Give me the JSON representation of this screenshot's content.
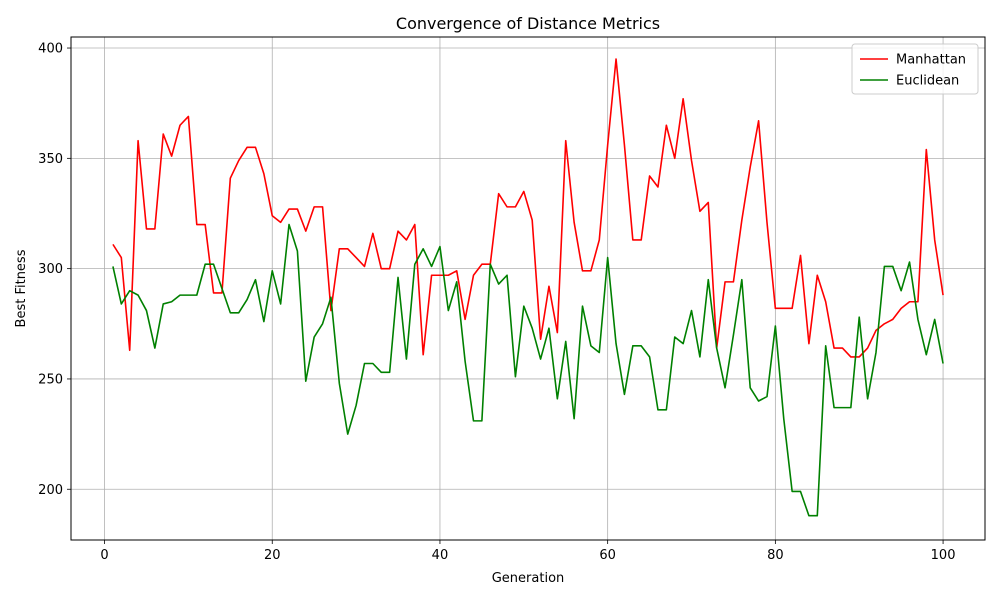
{
  "chart_data": {
    "type": "line",
    "title": "Convergence of Distance Metrics",
    "xlabel": "Generation",
    "ylabel": "Best Fitness",
    "xlim": [
      -4,
      105
    ],
    "ylim": [
      177,
      405
    ],
    "xticks": [
      0,
      20,
      40,
      60,
      80,
      100
    ],
    "yticks": [
      200,
      250,
      300,
      350,
      400
    ],
    "grid": true,
    "legend_position": "top-right",
    "x": [
      1,
      2,
      3,
      4,
      5,
      6,
      7,
      8,
      9,
      10,
      11,
      12,
      13,
      14,
      15,
      16,
      17,
      18,
      19,
      20,
      21,
      22,
      23,
      24,
      25,
      26,
      27,
      28,
      29,
      30,
      31,
      32,
      33,
      34,
      35,
      36,
      37,
      38,
      39,
      40,
      41,
      42,
      43,
      44,
      45,
      46,
      47,
      48,
      49,
      50,
      51,
      52,
      53,
      54,
      55,
      56,
      57,
      58,
      59,
      60,
      61,
      62,
      63,
      64,
      65,
      66,
      67,
      68,
      69,
      70,
      71,
      72,
      73,
      74,
      75,
      76,
      77,
      78,
      79,
      80,
      81,
      82,
      83,
      84,
      85,
      86,
      87,
      88,
      89,
      90,
      91,
      92,
      93,
      94,
      95,
      96,
      97,
      98,
      99,
      100
    ],
    "series": [
      {
        "name": "Manhattan",
        "color": "#ff0000",
        "values": [
          311,
          305,
          263,
          358,
          318,
          318,
          361,
          351,
          365,
          369,
          320,
          320,
          289,
          289,
          341,
          349,
          355,
          355,
          343,
          324,
          321,
          327,
          327,
          317,
          328,
          328,
          281,
          309,
          309,
          305,
          301,
          316,
          300,
          300,
          317,
          313,
          320,
          261,
          297,
          297,
          297,
          299,
          277,
          297,
          302,
          302,
          334,
          328,
          328,
          335,
          322,
          268,
          292,
          271,
          358,
          321,
          299,
          299,
          313,
          356,
          395,
          356,
          313,
          313,
          342,
          337,
          365,
          350,
          377,
          349,
          326,
          330,
          264,
          294,
          294,
          322,
          346,
          367,
          321,
          282,
          282,
          282,
          306,
          266,
          297,
          285,
          264,
          264,
          260,
          260,
          264,
          272,
          275,
          277,
          282,
          285,
          285,
          354,
          313,
          288
        ]
      },
      {
        "name": "Euclidean",
        "color": "#008000",
        "values": [
          301,
          284,
          290,
          288,
          281,
          264,
          284,
          285,
          288,
          288,
          288,
          302,
          302,
          291,
          280,
          280,
          286,
          295,
          276,
          299,
          284,
          320,
          308,
          249,
          269,
          275,
          287,
          248,
          225,
          238,
          257,
          257,
          253,
          253,
          296,
          259,
          302,
          309,
          301,
          310,
          281,
          294,
          258,
          231,
          231,
          302,
          293,
          297,
          251,
          283,
          273,
          259,
          273,
          241,
          267,
          232,
          283,
          265,
          262,
          305,
          266,
          243,
          265,
          265,
          260,
          236,
          236,
          269,
          266,
          281,
          260,
          295,
          264,
          246,
          270,
          295,
          246,
          240,
          242,
          274,
          232,
          199,
          199,
          188,
          188,
          265,
          237,
          237,
          237,
          278,
          241,
          262,
          301,
          301,
          290,
          303,
          277,
          261,
          277,
          257
        ]
      }
    ]
  }
}
